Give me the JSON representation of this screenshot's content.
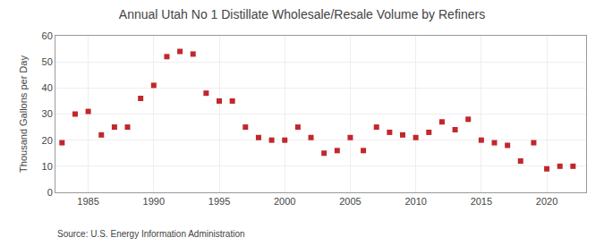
{
  "chart_data": {
    "type": "scatter",
    "title": "Annual Utah No 1 Distillate Wholesale/Resale Volume by Refiners",
    "ylabel": "Thousand Gallons per Day",
    "annotations": [
      "Source: U.S. Energy Information Administration"
    ],
    "x": [
      1983,
      1984,
      1985,
      1986,
      1987,
      1988,
      1989,
      1990,
      1991,
      1992,
      1993,
      1994,
      1995,
      1996,
      1997,
      1998,
      1999,
      2000,
      2001,
      2002,
      2003,
      2004,
      2005,
      2006,
      2007,
      2008,
      2009,
      2010,
      2011,
      2012,
      2013,
      2014,
      2015,
      2016,
      2017,
      2018,
      2019,
      2020,
      2021,
      2022
    ],
    "values": [
      19,
      30,
      31,
      22,
      25,
      25,
      36,
      41,
      52,
      54,
      53,
      38,
      35,
      35,
      25,
      21,
      20,
      20,
      25,
      21,
      15,
      16,
      21,
      16,
      25,
      23,
      22,
      21,
      23,
      27,
      24,
      28,
      20,
      19,
      18,
      12,
      19,
      9,
      10,
      10
    ],
    "color": "#c1272d",
    "marker": "square",
    "xlim": [
      1982.5,
      2023
    ],
    "ylim": [
      0,
      60
    ],
    "xticks": [
      1985,
      1990,
      1995,
      2000,
      2005,
      2010,
      2015,
      2020
    ],
    "yticks": [
      0,
      10,
      20,
      30,
      40,
      50,
      60
    ],
    "grid": true
  }
}
